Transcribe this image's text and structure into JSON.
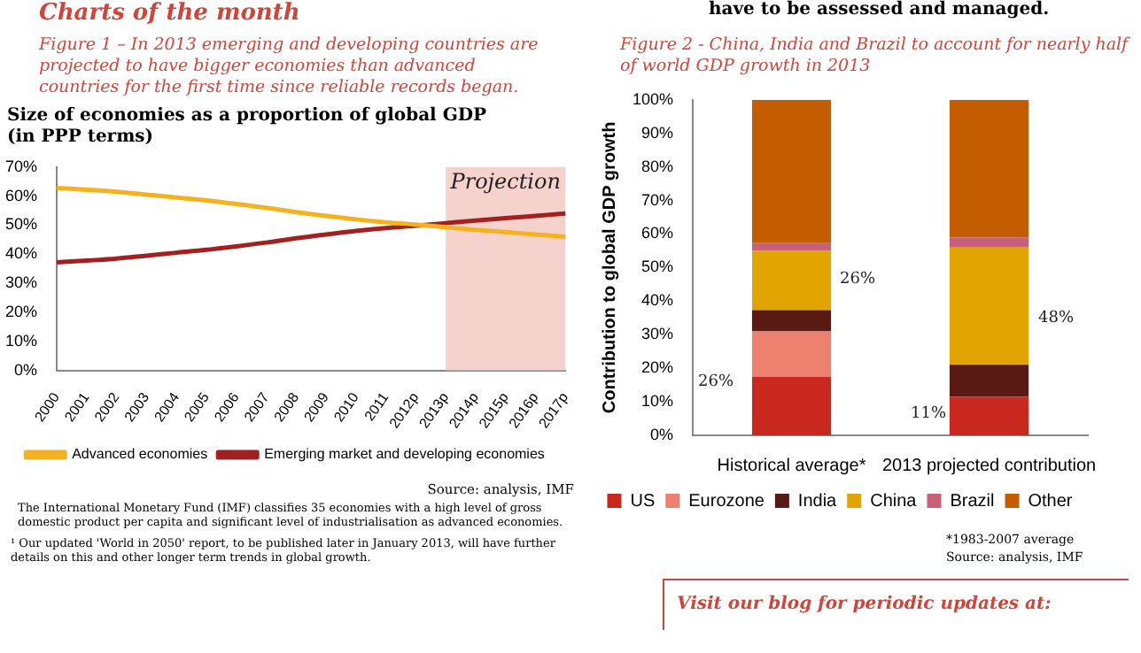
{
  "chart_data": [
    {
      "type": "line",
      "title": "Figure 1 – In 2013 emerging and developing countries are projected to have bigger economies than advanced countries for the first time since reliable records began.",
      "subtitle": "Size of economies as a proportion of global GDP (in PPP terms)",
      "categories": [
        "2000",
        "2001",
        "2002",
        "2003",
        "2004",
        "2005",
        "2006",
        "2007",
        "2008",
        "2009",
        "2010",
        "2011",
        "2012p",
        "2013p",
        "2014p",
        "2015p",
        "2016p",
        "2017p"
      ],
      "series": [
        {
          "name": "Advanced economies",
          "color": "#f5b21e",
          "values": [
            62.8,
            62.2,
            61.5,
            60.5,
            59.5,
            58.5,
            57.3,
            56,
            54.5,
            53.2,
            52,
            51,
            50.2,
            49.3,
            48.4,
            47.6,
            46.8,
            46
          ]
        },
        {
          "name": "Emerging market and developing economies",
          "color": "#a32020",
          "values": [
            37.2,
            37.8,
            38.5,
            39.5,
            40.5,
            41.5,
            42.7,
            44,
            45.5,
            46.8,
            48,
            49,
            49.8,
            50.7,
            51.6,
            52.4,
            53.2,
            54
          ]
        }
      ],
      "ylim": [
        0,
        70
      ],
      "yticks": [
        {
          "value": 0,
          "label": "0%"
        },
        {
          "value": 10,
          "label": "10%"
        },
        {
          "value": 20,
          "label": "20%"
        },
        {
          "value": 30,
          "label": "30%"
        },
        {
          "value": 40,
          "label": "40%"
        },
        {
          "value": 50,
          "label": "50%"
        },
        {
          "value": 60,
          "label": "60%"
        },
        {
          "value": 70,
          "label": "70%"
        }
      ],
      "bands": [
        {
          "axis": "x",
          "from": "2013p",
          "to": "2017p",
          "label": "Projection",
          "color": "#f6d2cc"
        }
      ],
      "grid": false,
      "legend": "bottom",
      "marker": "none",
      "line_style": "solid",
      "annotations": [
        "Charts of the month",
        "have to be assessed and managed.",
        "Source: analysis, IMF",
        "The International Monetary Fund (IMF) classifies 35 economies with a high level of gross domestic product per capita and significant level of industrialisation as advanced economies.",
        "¹ Our updated 'World in 2050' report, to be published later in January 2013, will have further details on this and other longer term trends in global growth."
      ]
    },
    {
      "type": "bar",
      "stacked": true,
      "title": "Figure 2  - China, India and Brazil to account for nearly half of world GDP growth in 2013",
      "ylabel": "Contribution to global GDP growth",
      "categories": [
        "Historical average*",
        "2013 projected contribution"
      ],
      "series": [
        {
          "name": "US",
          "color": "#c8281e",
          "values": [
            17.5,
            11.5
          ]
        },
        {
          "name": "Eurozone",
          "color": "#ee8070",
          "values": [
            13.5,
            0
          ]
        },
        {
          "name": "India",
          "color": "#5a1a14",
          "values": [
            6.3,
            9.5
          ]
        },
        {
          "name": "China",
          "color": "#e2a400",
          "values": [
            17.7,
            35
          ]
        },
        {
          "name": "Brazil",
          "color": "#c8607a",
          "values": [
            2.3,
            3
          ]
        },
        {
          "name": "Other",
          "color": "#c45c00",
          "values": [
            42.7,
            41
          ]
        }
      ],
      "ylim": [
        0,
        100
      ],
      "yticks": [
        {
          "value": 0,
          "label": "0%"
        },
        {
          "value": 10,
          "label": "10%"
        },
        {
          "value": 20,
          "label": "20%"
        },
        {
          "value": 30,
          "label": "30%"
        },
        {
          "value": 40,
          "label": "40%"
        },
        {
          "value": 50,
          "label": "50%"
        },
        {
          "value": 60,
          "label": "60%"
        },
        {
          "value": 70,
          "label": "70%"
        },
        {
          "value": 80,
          "label": "80%"
        },
        {
          "value": 90,
          "label": "90%"
        },
        {
          "value": 100,
          "label": "100%"
        }
      ],
      "grid": false,
      "legend": "bottom",
      "annotations": [
        "26%",
        "26%",
        "11%",
        "48%",
        "*1983-2007 average",
        "Source: analysis, IMF",
        "Visit our blog for periodic updates at:"
      ]
    }
  ]
}
